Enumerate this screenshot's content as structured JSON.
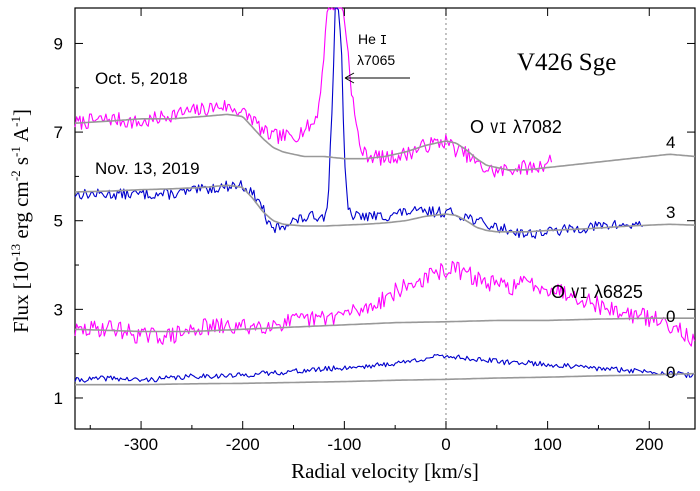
{
  "chart_data": {
    "type": "line",
    "title": "V426 Sge",
    "xlabel": "Radial velocity [km/s]",
    "ylabel": {
      "main": "Flux [10",
      "exp1": "-13",
      "mid1": " erg cm",
      "exp2": "-2",
      "mid2": " s",
      "exp3": "-1",
      "mid3": " A",
      "exp4": "-1",
      "end": "]"
    },
    "xlim": [
      -365,
      245
    ],
    "ylim": [
      0.3,
      9.8
    ],
    "xticks": [
      -300,
      -200,
      -100,
      0,
      100,
      200
    ],
    "xtick_labels": [
      "-300",
      "-200",
      "-100",
      "0",
      "100",
      "200"
    ],
    "yticks": [
      1,
      3,
      5,
      7,
      9
    ],
    "ytick_labels": [
      "1",
      "3",
      "5",
      "7",
      "9"
    ],
    "reference_line_x": 0,
    "colors": {
      "oct2018": "#ff00ff",
      "nov2019": "#0000cc",
      "model": "#999999"
    },
    "series": [
      {
        "name": "Oct. 5, 2018",
        "role": "observed",
        "offset_label": "4",
        "line": "O VI 7082",
        "color": "#ff00ff",
        "x": [
          -365,
          -330,
          -300,
          -270,
          -240,
          -220,
          -205,
          -190,
          -180,
          -170,
          -150,
          -130,
          -125,
          -120,
          -116,
          -112,
          -108,
          -105,
          -102,
          -99,
          -96,
          -93,
          -90,
          -85,
          -80,
          -60,
          -40,
          -20,
          0,
          10,
          20,
          35,
          50,
          70,
          90,
          105
        ],
        "y": [
          7.2,
          7.3,
          7.2,
          7.4,
          7.5,
          7.6,
          7.5,
          7.3,
          7.0,
          6.9,
          6.9,
          7.2,
          7.6,
          8.8,
          9.9,
          9.9,
          9.9,
          9.9,
          9.9,
          9.4,
          8.7,
          8.0,
          7.4,
          6.7,
          6.5,
          6.4,
          6.5,
          6.7,
          6.8,
          6.6,
          6.5,
          6.2,
          6.1,
          6.2,
          6.2,
          6.4
        ],
        "noise": 0.17,
        "seed": 7
      },
      {
        "name": "Nov. 13, 2019",
        "role": "observed",
        "offset_label": "3",
        "color": "#0000cc",
        "x": [
          -365,
          -330,
          -300,
          -270,
          -240,
          -210,
          -200,
          -190,
          -180,
          -175,
          -170,
          -160,
          -150,
          -130,
          -120,
          -116,
          -112,
          -109,
          -106,
          -103,
          -100,
          -96,
          -90,
          -80,
          -60,
          -40,
          -20,
          0,
          20,
          30,
          40,
          60,
          80,
          120,
          160,
          195
        ],
        "y": [
          5.6,
          5.6,
          5.6,
          5.6,
          5.7,
          5.8,
          5.8,
          5.6,
          5.3,
          4.9,
          4.8,
          4.9,
          5.0,
          5.1,
          5.1,
          5.5,
          7.5,
          9.9,
          9.9,
          9.0,
          6.3,
          5.2,
          5.1,
          5.1,
          5.1,
          5.2,
          5.2,
          5.2,
          5.1,
          5.0,
          4.9,
          4.8,
          4.7,
          4.8,
          4.9,
          4.9
        ],
        "noise": 0.12,
        "seed": 13
      },
      {
        "name": "Oct. 5, 2018",
        "role": "observed",
        "offset_label": "0",
        "line": "O VI 6825",
        "color": "#ff00ff",
        "x": [
          -365,
          -330,
          -300,
          -270,
          -240,
          -200,
          -160,
          -120,
          -80,
          -50,
          -20,
          0,
          10,
          20,
          40,
          60,
          80,
          100,
          130,
          160,
          200,
          230,
          245
        ],
        "y": [
          2.5,
          2.6,
          2.4,
          2.4,
          2.6,
          2.6,
          2.7,
          2.8,
          3.0,
          3.4,
          3.7,
          3.9,
          3.9,
          3.8,
          3.6,
          3.5,
          3.6,
          3.5,
          3.3,
          3.0,
          2.8,
          2.6,
          2.2
        ],
        "noise": 0.2,
        "seed": 29
      },
      {
        "name": "Nov. 13, 2019",
        "role": "observed",
        "offset_label": "0",
        "color": "#0000cc",
        "x": [
          -365,
          -330,
          -300,
          -270,
          -240,
          -210,
          -180,
          -150,
          -120,
          -90,
          -60,
          -30,
          -20,
          0,
          20,
          40,
          60,
          80,
          100,
          130,
          160,
          200,
          245
        ],
        "y": [
          1.4,
          1.45,
          1.4,
          1.45,
          1.5,
          1.5,
          1.55,
          1.6,
          1.65,
          1.7,
          1.75,
          1.85,
          1.9,
          1.95,
          1.9,
          1.85,
          1.8,
          1.8,
          1.75,
          1.7,
          1.65,
          1.6,
          1.5
        ],
        "noise": 0.06,
        "seed": 41
      },
      {
        "role": "model",
        "color": "#999999",
        "x": [
          -365,
          -330,
          -300,
          -270,
          -240,
          -215,
          -200,
          -190,
          -180,
          -170,
          -160,
          -140,
          -120,
          -100,
          -80,
          -60,
          -40,
          -20,
          0,
          10,
          20,
          30,
          40,
          50,
          60,
          80,
          100,
          120,
          140,
          160,
          180,
          200,
          220,
          245
        ],
        "y": [
          7.2,
          7.25,
          7.3,
          7.3,
          7.35,
          7.4,
          7.35,
          7.1,
          6.85,
          6.65,
          6.55,
          6.45,
          6.45,
          6.4,
          6.4,
          6.45,
          6.55,
          6.7,
          6.8,
          6.75,
          6.6,
          6.4,
          6.25,
          6.2,
          6.15,
          6.15,
          6.2,
          6.25,
          6.3,
          6.35,
          6.4,
          6.45,
          6.5,
          6.45
        ]
      },
      {
        "role": "model",
        "color": "#999999",
        "x": [
          -365,
          -330,
          -300,
          -270,
          -240,
          -215,
          -200,
          -190,
          -180,
          -170,
          -160,
          -140,
          -120,
          -100,
          -80,
          -60,
          -40,
          -20,
          0,
          10,
          20,
          30,
          40,
          50,
          60,
          80,
          100,
          120,
          140,
          160,
          180,
          200,
          220,
          245
        ],
        "y": [
          5.65,
          5.67,
          5.7,
          5.72,
          5.75,
          5.8,
          5.75,
          5.5,
          5.2,
          5.0,
          4.92,
          4.88,
          4.88,
          4.9,
          4.92,
          4.95,
          5.0,
          5.1,
          5.15,
          5.12,
          5.0,
          4.85,
          4.78,
          4.75,
          4.75,
          4.75,
          4.78,
          4.8,
          4.82,
          4.85,
          4.88,
          4.9,
          4.92,
          4.9
        ]
      },
      {
        "role": "model",
        "color": "#999999",
        "x": [
          -365,
          -300,
          -250,
          -200,
          -150,
          -100,
          -50,
          0,
          50,
          100,
          150,
          200,
          245
        ],
        "y": [
          2.55,
          2.5,
          2.5,
          2.55,
          2.6,
          2.65,
          2.7,
          2.72,
          2.75,
          2.75,
          2.78,
          2.8,
          2.8
        ]
      },
      {
        "role": "model",
        "color": "#999999",
        "x": [
          -365,
          -300,
          -250,
          -200,
          -150,
          -100,
          -50,
          0,
          50,
          100,
          150,
          200,
          245
        ],
        "y": [
          1.3,
          1.3,
          1.32,
          1.33,
          1.35,
          1.37,
          1.4,
          1.42,
          1.45,
          1.47,
          1.5,
          1.52,
          1.55
        ]
      }
    ],
    "annotations": {
      "star": "V426 Sge",
      "he_line_1": "He",
      "he_line_roman": "I",
      "he_line_2": "λ7065",
      "ovi_a_ion": "O",
      "ovi_a_roman": "VI",
      "ovi_a_wave": "λ7082",
      "ovi_b_ion": "O",
      "ovi_b_roman": "VI",
      "ovi_b_wave": "λ6825",
      "date_1": "Oct. 5, 2018",
      "date_2": "Nov. 13, 2019",
      "off_4": "4",
      "off_3": "3",
      "off_0a": "0",
      "off_0b": "0"
    }
  }
}
